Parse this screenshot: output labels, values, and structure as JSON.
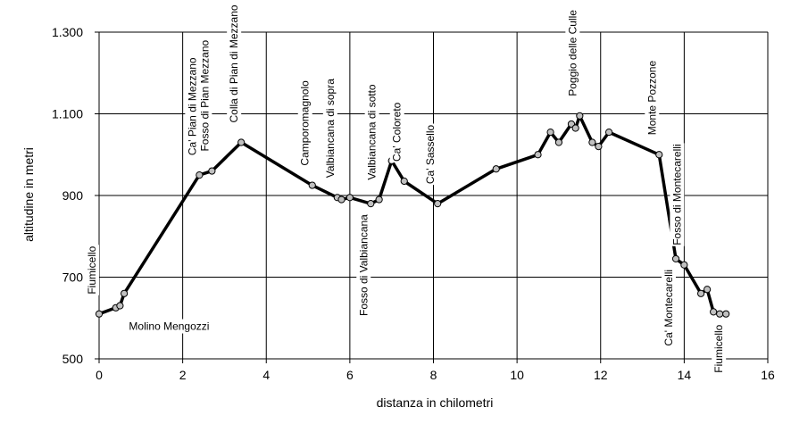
{
  "chart_data": {
    "type": "line",
    "xlabel": "distanza in chilometri",
    "ylabel": "altitudine  in metri",
    "xlim": [
      0,
      16
    ],
    "ylim": [
      500,
      1300
    ],
    "xticks": [
      "0",
      "2",
      "4",
      "6",
      "8",
      "10",
      "12",
      "14",
      "16"
    ],
    "yticks": [
      "500",
      "700",
      "900",
      "1.100",
      "1.300"
    ],
    "grid": true,
    "series": [
      {
        "x": [
          0,
          0.4,
          0.5,
          0.6,
          2.4,
          2.7,
          3.4,
          5.1,
          5.7,
          5.8,
          6.0,
          6.5,
          6.7,
          7.0,
          7.3,
          8.1,
          9.5,
          10.5,
          10.8,
          11.0,
          11.3,
          11.4,
          11.5,
          11.8,
          11.95,
          12.2,
          13.4,
          13.8,
          14.0,
          14.4,
          14.55,
          14.7,
          14.85,
          15.0
        ],
        "y": [
          610,
          625,
          630,
          660,
          950,
          960,
          1030,
          925,
          895,
          890,
          895,
          880,
          890,
          985,
          935,
          880,
          965,
          1000,
          1055,
          1030,
          1075,
          1065,
          1095,
          1030,
          1020,
          1055,
          1000,
          745,
          730,
          660,
          670,
          615,
          610,
          610
        ]
      }
    ],
    "annotations": [
      {
        "text": "Fiumicello",
        "x": 0,
        "anchor": "above"
      },
      {
        "text": "Molino Mengozzi",
        "x": 0.5,
        "anchor": "horizontal"
      },
      {
        "text": "Ca' Pian di Mezzano",
        "x": 2.4,
        "anchor": "above"
      },
      {
        "text": "Fosso di Pian Mezzano",
        "x": 2.7,
        "anchor": "above"
      },
      {
        "text": "Colla di Pian di Mezzano",
        "x": 3.4,
        "anchor": "above"
      },
      {
        "text": "Camporomagnolo",
        "x": 5.1,
        "anchor": "above"
      },
      {
        "text": "Valbiancana di sopra",
        "x": 5.7,
        "anchor": "above"
      },
      {
        "text": "Fosso di Valbiancana",
        "x": 6.5,
        "anchor": "below"
      },
      {
        "text": "Valbiancana di sotto",
        "x": 6.7,
        "anchor": "above"
      },
      {
        "text": "Ca' Coloreto",
        "x": 7.3,
        "anchor": "above"
      },
      {
        "text": "Ca' Sassello",
        "x": 8.1,
        "anchor": "above"
      },
      {
        "text": "Poggio delle Culle",
        "x": 11.5,
        "anchor": "above"
      },
      {
        "text": "Monte Pozzone",
        "x": 13.4,
        "anchor": "above"
      },
      {
        "text": "Ca' Montecarelli",
        "x": 13.8,
        "anchor": "below"
      },
      {
        "text": "Fosso di Montecarelli",
        "x": 14.0,
        "anchor": "above"
      },
      {
        "text": "Fiumicello",
        "x": 15.0,
        "anchor": "below"
      }
    ]
  },
  "style": {
    "line_color": "#000000",
    "marker_fill": "#c0c0c0",
    "grid_color": "#000000"
  }
}
